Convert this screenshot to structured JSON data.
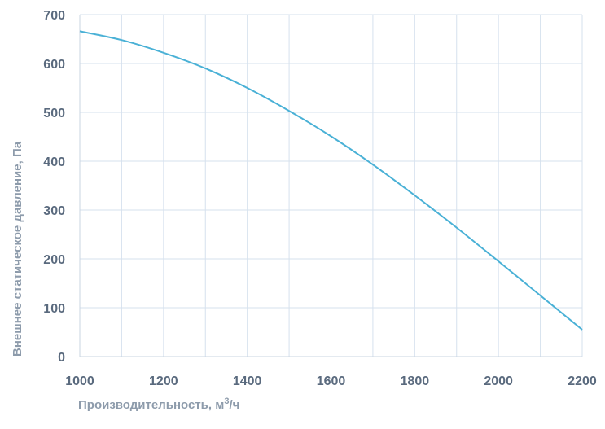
{
  "chart_data": {
    "type": "line",
    "title": "",
    "xlabel_main": "Производительность, м",
    "xlabel_sup": "3",
    "xlabel_tail": "/ч",
    "ylabel": "Внешнее  статическое  давление, Па",
    "xlim": [
      1000,
      2200
    ],
    "ylim": [
      0,
      700
    ],
    "x_ticks": [
      1000,
      1200,
      1400,
      1600,
      1800,
      2000,
      2200
    ],
    "y_ticks": [
      0,
      100,
      200,
      300,
      400,
      500,
      600,
      700
    ],
    "x_minor_grid": [
      1100,
      1300,
      1500,
      1700,
      1900,
      2100
    ],
    "grid": true,
    "legend": "none",
    "colors": {
      "series": "#4ab1d6",
      "grid": "#d6e1ee",
      "ticks": "#5a6a7e",
      "axis_title": "#8d9bab"
    },
    "series": [
      {
        "x": [
          1000,
          1100,
          1200,
          1300,
          1400,
          1500,
          1600,
          1700,
          1800,
          1900,
          2000,
          2100,
          2200
        ],
        "values": [
          666,
          648,
          622,
          590,
          550,
          503,
          451,
          393,
          330,
          264,
          195,
          125,
          55
        ]
      }
    ]
  }
}
